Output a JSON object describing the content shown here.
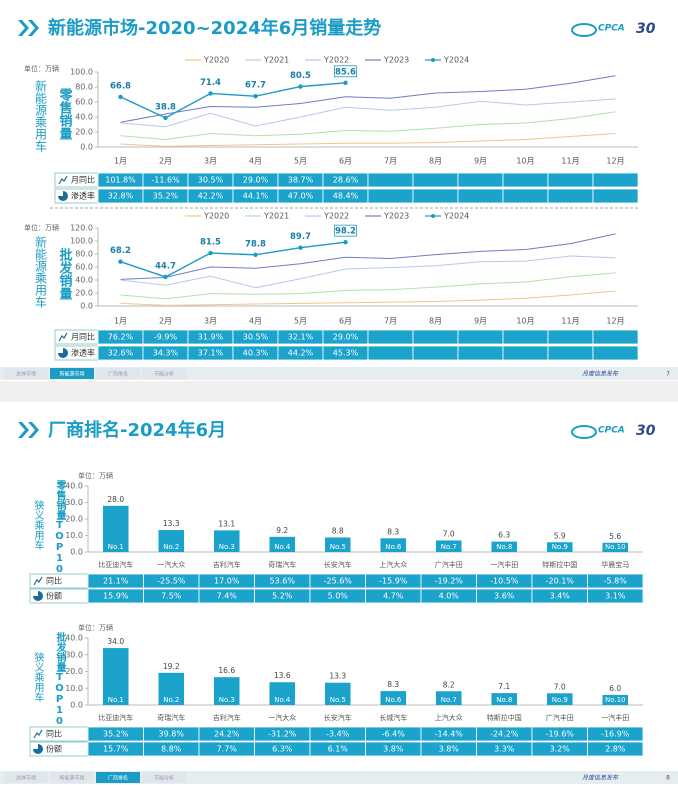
{
  "slides": [
    {
      "title": "新能源市场-2020~2024年6月销量走势",
      "logo": "CPCA",
      "anniversary": "30",
      "footer_tabs": [
        "总体市场",
        "新能源市场",
        "厂商排名",
        "节能分析"
      ],
      "active_tab": 1,
      "footer_note": "月度信息发布",
      "page": "7"
    },
    {
      "title": "厂商排名-2024年6月",
      "logo": "CPCA",
      "anniversary": "30",
      "footer_tabs": [
        "总体市场",
        "新能源市场",
        "厂商排名",
        "节能分析"
      ],
      "active_tab": 2,
      "footer_note": "月度信息发布",
      "page": "8"
    }
  ],
  "chart_data": [
    {
      "type": "line",
      "unit": "单位：万辆",
      "side_label": "新能源乘用车",
      "metric_label": "零售销量",
      "legend": "top",
      "categories": [
        "1月",
        "2月",
        "3月",
        "4月",
        "5月",
        "6月",
        "7月",
        "8月",
        "9月",
        "10月",
        "11月",
        "12月"
      ],
      "ylim": [
        0,
        100
      ],
      "yticks": [
        {
          "value": 0,
          "label": "0.0"
        },
        {
          "value": 20,
          "label": "20.0"
        },
        {
          "value": 40,
          "label": "40.0"
        },
        {
          "value": 60,
          "label": "60.0"
        },
        {
          "value": 80,
          "label": "80.0"
        },
        {
          "value": 100,
          "label": "100.0"
        }
      ],
      "series": [
        {
          "name": "Y2020",
          "color": "#f5c48e",
          "values": [
            4,
            1,
            2,
            3,
            4,
            5,
            5,
            6,
            8,
            10,
            14,
            18
          ]
        },
        {
          "name": "Y2021",
          "color": "#b4e0ad",
          "values": [
            15,
            10,
            18,
            15,
            17,
            22,
            21,
            25,
            30,
            32,
            38,
            47
          ]
        },
        {
          "name": "Y2022",
          "color": "#b5c9e6",
          "values": [
            32,
            27,
            45,
            28,
            40,
            53,
            49,
            53,
            61,
            56,
            60,
            64
          ]
        },
        {
          "name": "Y2023",
          "color": "#6f7cc6",
          "values": [
            33,
            44,
            54,
            53,
            58,
            67,
            65,
            72,
            74,
            77,
            85,
            95
          ]
        },
        {
          "name": "Y2024",
          "color": "#1b9cc4",
          "markers": true,
          "show_labels": true,
          "values": [
            66.8,
            38.8,
            71.4,
            67.7,
            80.5,
            85.6,
            null,
            null,
            null,
            null,
            null,
            null
          ]
        }
      ],
      "table": {
        "rows": [
          {
            "label": "月同比",
            "cells": [
              "101.8%",
              "-11.6%",
              "30.5%",
              "29.0%",
              "38.7%",
              "28.6%"
            ]
          },
          {
            "label": "渗透率",
            "cells": [
              "32.8%",
              "35.2%",
              "42.2%",
              "44.1%",
              "47.0%",
              "48.4%"
            ]
          }
        ]
      }
    },
    {
      "type": "line",
      "unit": "单位：万辆",
      "side_label": "新能源乘用车",
      "metric_label": "批发销量",
      "legend": "top",
      "categories": [
        "1月",
        "2月",
        "3月",
        "4月",
        "5月",
        "6月",
        "7月",
        "8月",
        "9月",
        "10月",
        "11月",
        "12月"
      ],
      "ylim": [
        0,
        120
      ],
      "yticks": [
        {
          "value": 0,
          "label": "0.0"
        },
        {
          "value": 20,
          "label": "20.0"
        },
        {
          "value": 40,
          "label": "40.0"
        },
        {
          "value": 60,
          "label": "60.0"
        },
        {
          "value": 80,
          "label": "80.0"
        },
        {
          "value": 100,
          "label": "100.0"
        },
        {
          "value": 120,
          "label": "120.0"
        }
      ],
      "series": [
        {
          "name": "Y2020",
          "color": "#f5c48e",
          "values": [
            4,
            1,
            2,
            3,
            4,
            5,
            6,
            7,
            9,
            12,
            17,
            23
          ]
        },
        {
          "name": "Y2021",
          "color": "#b4e0ad",
          "values": [
            17,
            11,
            19,
            18,
            19,
            24,
            25,
            29,
            34,
            37,
            45,
            51
          ]
        },
        {
          "name": "Y2022",
          "color": "#b5c9e6",
          "values": [
            40,
            32,
            46,
            28,
            42,
            57,
            59,
            62,
            68,
            69,
            77,
            74
          ]
        },
        {
          "name": "Y2023",
          "color": "#6f7cc6",
          "values": [
            41,
            44,
            60,
            58,
            65,
            75,
            73,
            79,
            84,
            87,
            96,
            111
          ]
        },
        {
          "name": "Y2024",
          "color": "#1b9cc4",
          "markers": true,
          "show_labels": true,
          "values": [
            68.2,
            44.7,
            81.5,
            78.8,
            89.7,
            98.2,
            null,
            null,
            null,
            null,
            null,
            null
          ]
        }
      ],
      "table": {
        "rows": [
          {
            "label": "月同比",
            "cells": [
              "76.2%",
              "-9.9%",
              "31.9%",
              "30.5%",
              "32.1%",
              "29.0%"
            ]
          },
          {
            "label": "渗透率",
            "cells": [
              "32.6%",
              "34.3%",
              "37.1%",
              "40.3%",
              "44.2%",
              "45.3%"
            ]
          }
        ]
      }
    },
    {
      "type": "bar",
      "unit": "单位：万辆",
      "side_label": "狭义乘用车",
      "metric_label": "零售销量TOP10",
      "color": "#1ba3cb",
      "categories": [
        "比亚迪汽车",
        "一汽大众",
        "吉利汽车",
        "奇瑞汽车",
        "长安汽车",
        "上汽大众",
        "广汽丰田",
        "一汽丰田",
        "特斯拉中国",
        "华晨宝马"
      ],
      "rank_labels": [
        "No.1",
        "No.2",
        "No.3",
        "No.4",
        "No.5",
        "No.6",
        "No.7",
        "No.8",
        "No.9",
        "No.10"
      ],
      "values": [
        28.0,
        13.3,
        13.1,
        9.2,
        8.8,
        8.3,
        7.0,
        6.3,
        5.9,
        5.6
      ],
      "value_labels": [
        "28.0",
        "13.3",
        "13.1",
        "9.2",
        "8.8",
        "8.3",
        "7.0",
        "6.3",
        "5.9",
        "5.6"
      ],
      "ylim": [
        0,
        40
      ],
      "yticks": [
        {
          "value": 0,
          "label": "0.0"
        },
        {
          "value": 10,
          "label": "10.0"
        },
        {
          "value": 20,
          "label": "20.0"
        },
        {
          "value": 30,
          "label": "30.0"
        },
        {
          "value": 40,
          "label": "40.0"
        }
      ],
      "table": {
        "rows": [
          {
            "label": "同比",
            "cells": [
              "21.1%",
              "-25.5%",
              "17.0%",
              "53.6%",
              "-25.6%",
              "-15.9%",
              "-19.2%",
              "-10.5%",
              "-20.1%",
              "-5.8%"
            ]
          },
          {
            "label": "份额",
            "cells": [
              "15.9%",
              "7.5%",
              "7.4%",
              "5.2%",
              "5.0%",
              "4.7%",
              "4.0%",
              "3.6%",
              "3.4%",
              "3.1%"
            ]
          }
        ]
      }
    },
    {
      "type": "bar",
      "unit": "单位：万辆",
      "side_label": "狭义乘用车",
      "metric_label": "批发销量TOP10",
      "color": "#1ba3cb",
      "categories": [
        "比亚迪汽车",
        "奇瑞汽车",
        "吉利汽车",
        "一汽大众",
        "长安汽车",
        "长城汽车",
        "上汽大众",
        "特斯拉中国",
        "广汽丰田",
        "一汽丰田"
      ],
      "rank_labels": [
        "No.1",
        "No.2",
        "No.3",
        "No.4",
        "No.5",
        "No.6",
        "No.7",
        "No.8",
        "No.9",
        "No.10"
      ],
      "values": [
        34.0,
        19.2,
        16.6,
        13.6,
        13.3,
        8.3,
        8.2,
        7.1,
        7.0,
        6.0
      ],
      "value_labels": [
        "34.0",
        "19.2",
        "16.6",
        "13.6",
        "13.3",
        "8.3",
        "8.2",
        "7.1",
        "7.0",
        "6.0"
      ],
      "ylim": [
        0,
        40
      ],
      "yticks": [
        {
          "value": 0,
          "label": "0.0"
        },
        {
          "value": 10,
          "label": "10.0"
        },
        {
          "value": 20,
          "label": "20.0"
        },
        {
          "value": 30,
          "label": "30.0"
        },
        {
          "value": 40,
          "label": "40.0"
        }
      ],
      "table": {
        "rows": [
          {
            "label": "同比",
            "cells": [
              "35.2%",
              "39.8%",
              "24.2%",
              "-31.2%",
              "-3.4%",
              "-6.4%",
              "-14.4%",
              "-24.2%",
              "-19.6%",
              "-16.9%"
            ]
          },
          {
            "label": "份额",
            "cells": [
              "15.7%",
              "8.8%",
              "7.7%",
              "6.3%",
              "6.1%",
              "3.8%",
              "3.8%",
              "3.3%",
              "3.2%",
              "2.8%"
            ]
          }
        ]
      }
    }
  ]
}
